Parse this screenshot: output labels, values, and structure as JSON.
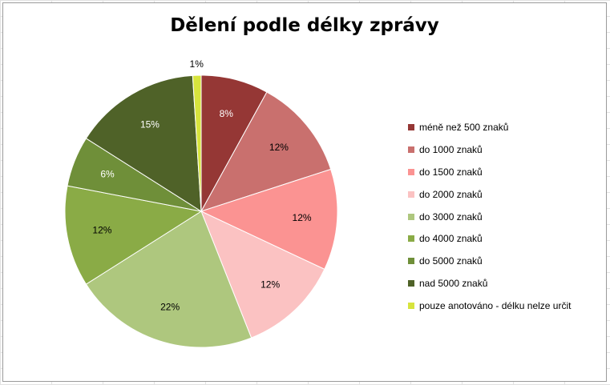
{
  "chart_data": {
    "type": "pie",
    "title": "Dělení podle délky zprávy",
    "legend_position": "right",
    "slices": [
      {
        "name": "méně než 500  znaků",
        "value": 8,
        "label": "8%",
        "color": "#953735"
      },
      {
        "name": "do 1000  znaků",
        "value": 12,
        "label": "12%",
        "color": "#c9706e"
      },
      {
        "name": "do 1500  znaků",
        "value": 12,
        "label": "12%",
        "color": "#fb9392"
      },
      {
        "name": "do 2000  znaků",
        "value": 12,
        "label": "12%",
        "color": "#fbc2c2"
      },
      {
        "name": "do 3000  znaků",
        "value": 22,
        "label": "22%",
        "color": "#aec77e"
      },
      {
        "name": "do 4000  znaků",
        "value": 12,
        "label": "12%",
        "color": "#8aab46"
      },
      {
        "name": "do 5000  znaků",
        "value": 6,
        "label": "6%",
        "color": "#6f8f39"
      },
      {
        "name": "nad 5000  znaků",
        "value": 15,
        "label": "15%",
        "color": "#4f6228"
      },
      {
        "name": "pouze anotováno  - délku nelze určit",
        "value": 1,
        "label": "1%",
        "color": "#d7e43d"
      }
    ]
  }
}
